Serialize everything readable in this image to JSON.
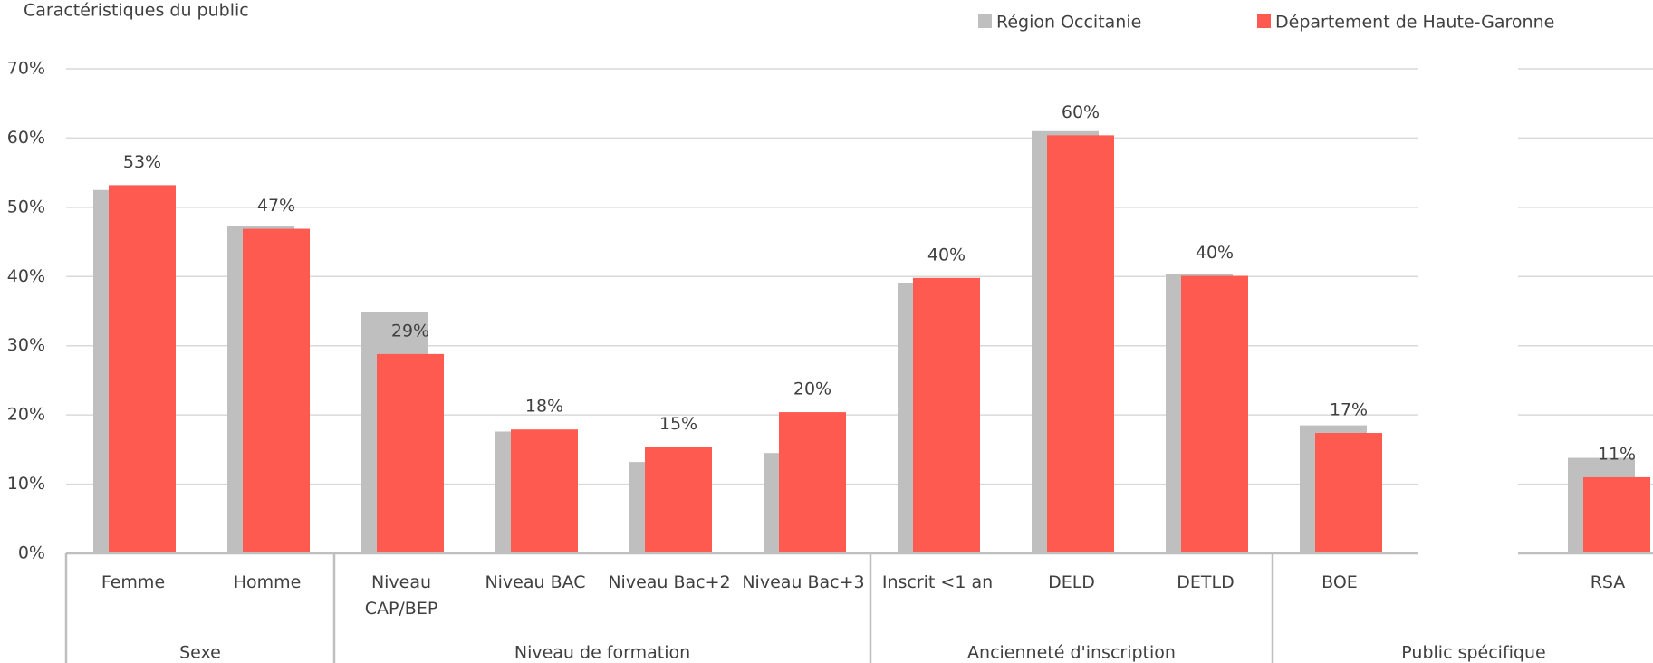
{
  "chart_data": {
    "type": "bar",
    "title": "Caractéristiques du public",
    "categories": [
      "Femme",
      "Homme",
      "Niveau\nCAP/BEP",
      "Niveau BAC",
      "Niveau Bac+2",
      "Niveau Bac+3",
      "Inscrit <1 an",
      "DELD",
      "DETLD",
      "BOE",
      null,
      "RSA"
    ],
    "groups": [
      {
        "name": "Sexe",
        "start": 0,
        "end": 1
      },
      {
        "name": "Niveau de formation",
        "start": 2,
        "end": 5
      },
      {
        "name": "Ancienneté d'inscription",
        "start": 6,
        "end": 8
      },
      {
        "name": "Public spécifique",
        "start": 9,
        "end": 11
      }
    ],
    "series": [
      {
        "name": "Région Occitanie",
        "color": "#bfbfbf",
        "values": [
          52.5,
          47.3,
          34.8,
          17.6,
          13.2,
          14.5,
          39,
          61,
          40.3,
          18.5,
          null,
          13.8
        ]
      },
      {
        "name": "Département de Haute-Garonne",
        "color": "#ff5a50",
        "values": [
          53.2,
          46.9,
          28.8,
          17.9,
          15.4,
          20.4,
          39.8,
          60.4,
          40.1,
          17.4,
          null,
          11
        ],
        "value_labels": [
          "53%",
          "47%",
          "29%",
          "18%",
          "15%",
          "20%",
          "40%",
          "60%",
          "40%",
          "17%",
          null,
          "11%"
        ]
      }
    ],
    "ylim": [
      0,
      70
    ],
    "yticks": [
      {
        "value": 0,
        "label": "0%"
      },
      {
        "value": 10,
        "label": "10%"
      },
      {
        "value": 20,
        "label": "20%"
      },
      {
        "value": 30,
        "label": "30%"
      },
      {
        "value": 40,
        "label": "40%"
      },
      {
        "value": 50,
        "label": "50%"
      },
      {
        "value": 60,
        "label": "60%"
      },
      {
        "value": 70,
        "label": "70%"
      }
    ],
    "grid": true
  }
}
